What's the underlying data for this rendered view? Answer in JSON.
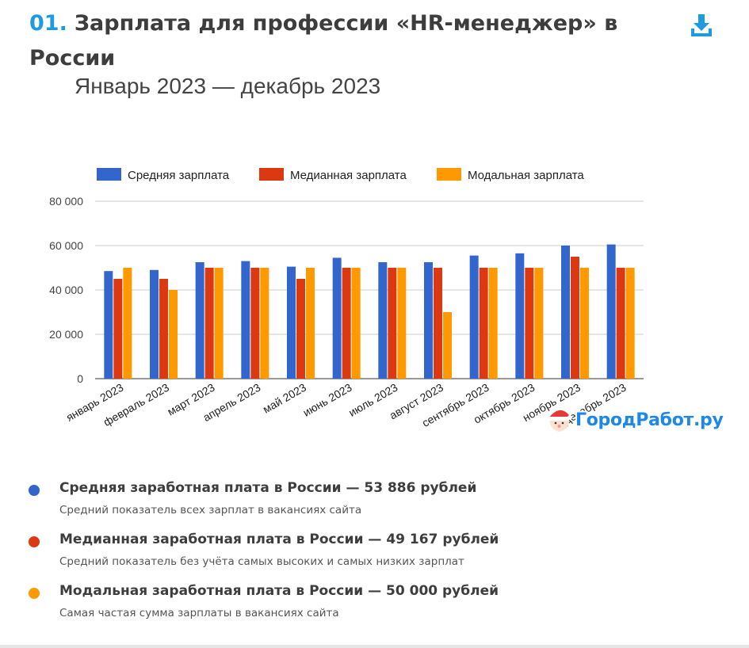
{
  "header": {
    "number": "01.",
    "title": "Зарплата для профессии «HR-менеджер» в России",
    "download_icon": "download-icon"
  },
  "colors": {
    "accent": "#1e9be0",
    "average": "#3366cc",
    "median": "#dc3912",
    "mode": "#ff9900"
  },
  "chart_data": {
    "type": "bar",
    "title": "Январь 2023 — декабрь 2023",
    "categories": [
      "январь 2023",
      "февраль 2023",
      "март 2023",
      "апрель 2023",
      "май 2023",
      "июнь 2023",
      "июль 2023",
      "август 2023",
      "сентябрь 2023",
      "октябрь 2023",
      "ноябрь 2023",
      "декабрь 2023"
    ],
    "series": [
      {
        "name": "Средняя зарплата",
        "color": "#3366cc",
        "values": [
          48500,
          49000,
          52500,
          53000,
          50500,
          54500,
          52500,
          52500,
          55500,
          56500,
          60000,
          60500
        ]
      },
      {
        "name": "Медианная зарплата",
        "color": "#dc3912",
        "values": [
          45000,
          45000,
          50000,
          50000,
          45000,
          50000,
          50000,
          50000,
          50000,
          50000,
          55000,
          50000
        ]
      },
      {
        "name": "Модальная зарплата",
        "color": "#ff9900",
        "values": [
          50000,
          40000,
          50000,
          50000,
          50000,
          50000,
          50000,
          30000,
          50000,
          50000,
          50000,
          50000
        ]
      }
    ],
    "yticks": [
      "0",
      "20 000",
      "40 000",
      "60 000",
      "80 000"
    ],
    "ylim": [
      0,
      80000
    ],
    "xlabel": "",
    "ylabel": "",
    "grid": true,
    "legend_position": "top"
  },
  "watermark": {
    "text": "ГородРабот.ру",
    "icon": "santa-icon"
  },
  "summary": [
    {
      "title": "Средняя заработная плата в России — 53 886 рублей",
      "desc": "Средний показатель всех зарплат в вакансиях сайта",
      "color": "#3366cc"
    },
    {
      "title": "Медианная заработная плата в России — 49 167 рублей",
      "desc": "Средний показатель без учёта самых высоких и самых низких зарплат",
      "color": "#dc3912"
    },
    {
      "title": "Модальная заработная плата в России — 50 000 рублей",
      "desc": "Самая частая сумма зарплаты в вакансиях сайта",
      "color": "#ff9900"
    }
  ]
}
